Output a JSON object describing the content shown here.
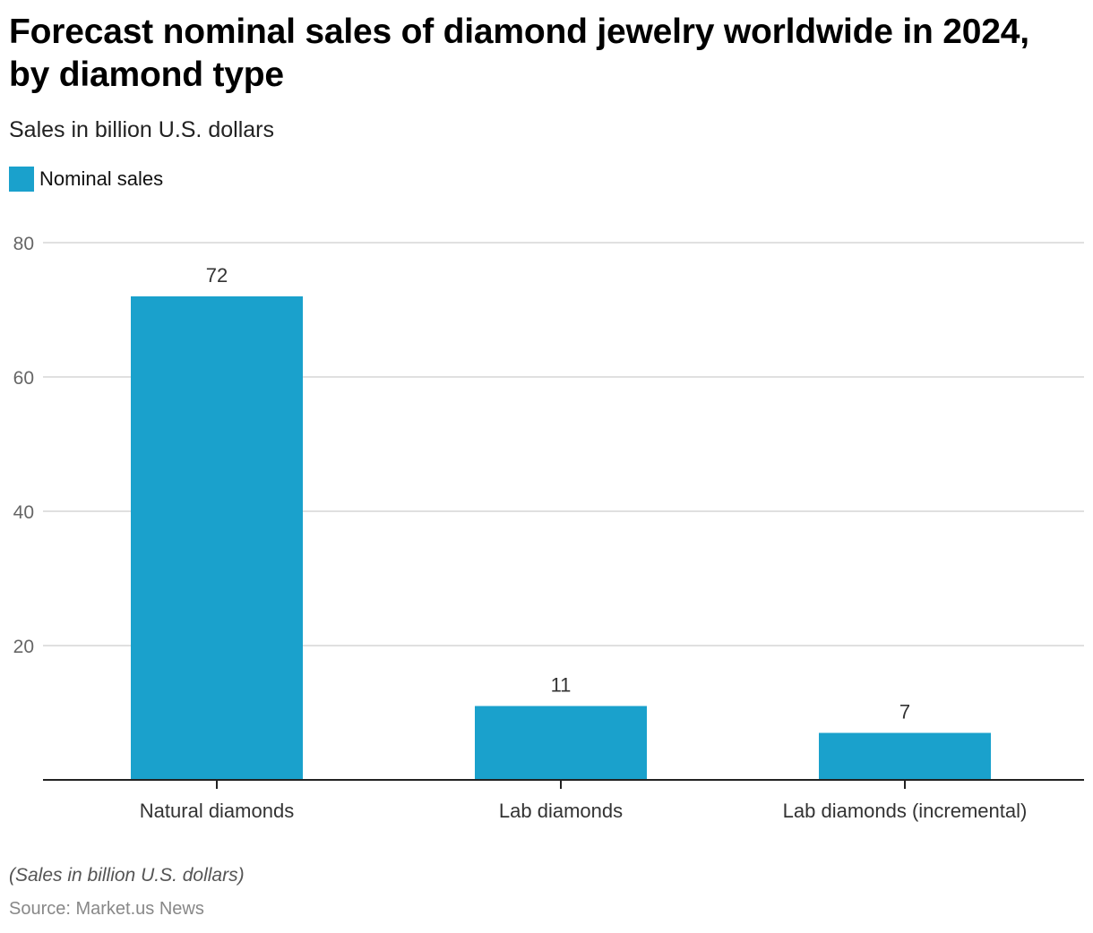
{
  "chart_data": {
    "type": "bar",
    "title": "Forecast nominal sales of diamond jewelry worldwide in 2024, by diamond type",
    "subtitle": "Sales in billion U.S. dollars",
    "xlabel": "",
    "ylabel": "",
    "categories": [
      "Natural diamonds",
      "Lab diamonds",
      "Lab diamonds (incremental)"
    ],
    "series": [
      {
        "name": "Nominal sales",
        "values": [
          72,
          11,
          7
        ],
        "color": "#1aa1cc"
      }
    ],
    "data_labels": [
      "72",
      "11",
      "7"
    ],
    "ylim": [
      0,
      80
    ],
    "yticks": [
      20,
      40,
      60,
      80
    ],
    "grid": true,
    "legend_position": "top-left",
    "footnote": "(Sales in billion U.S. dollars)",
    "source": "Source: Market.us News"
  }
}
